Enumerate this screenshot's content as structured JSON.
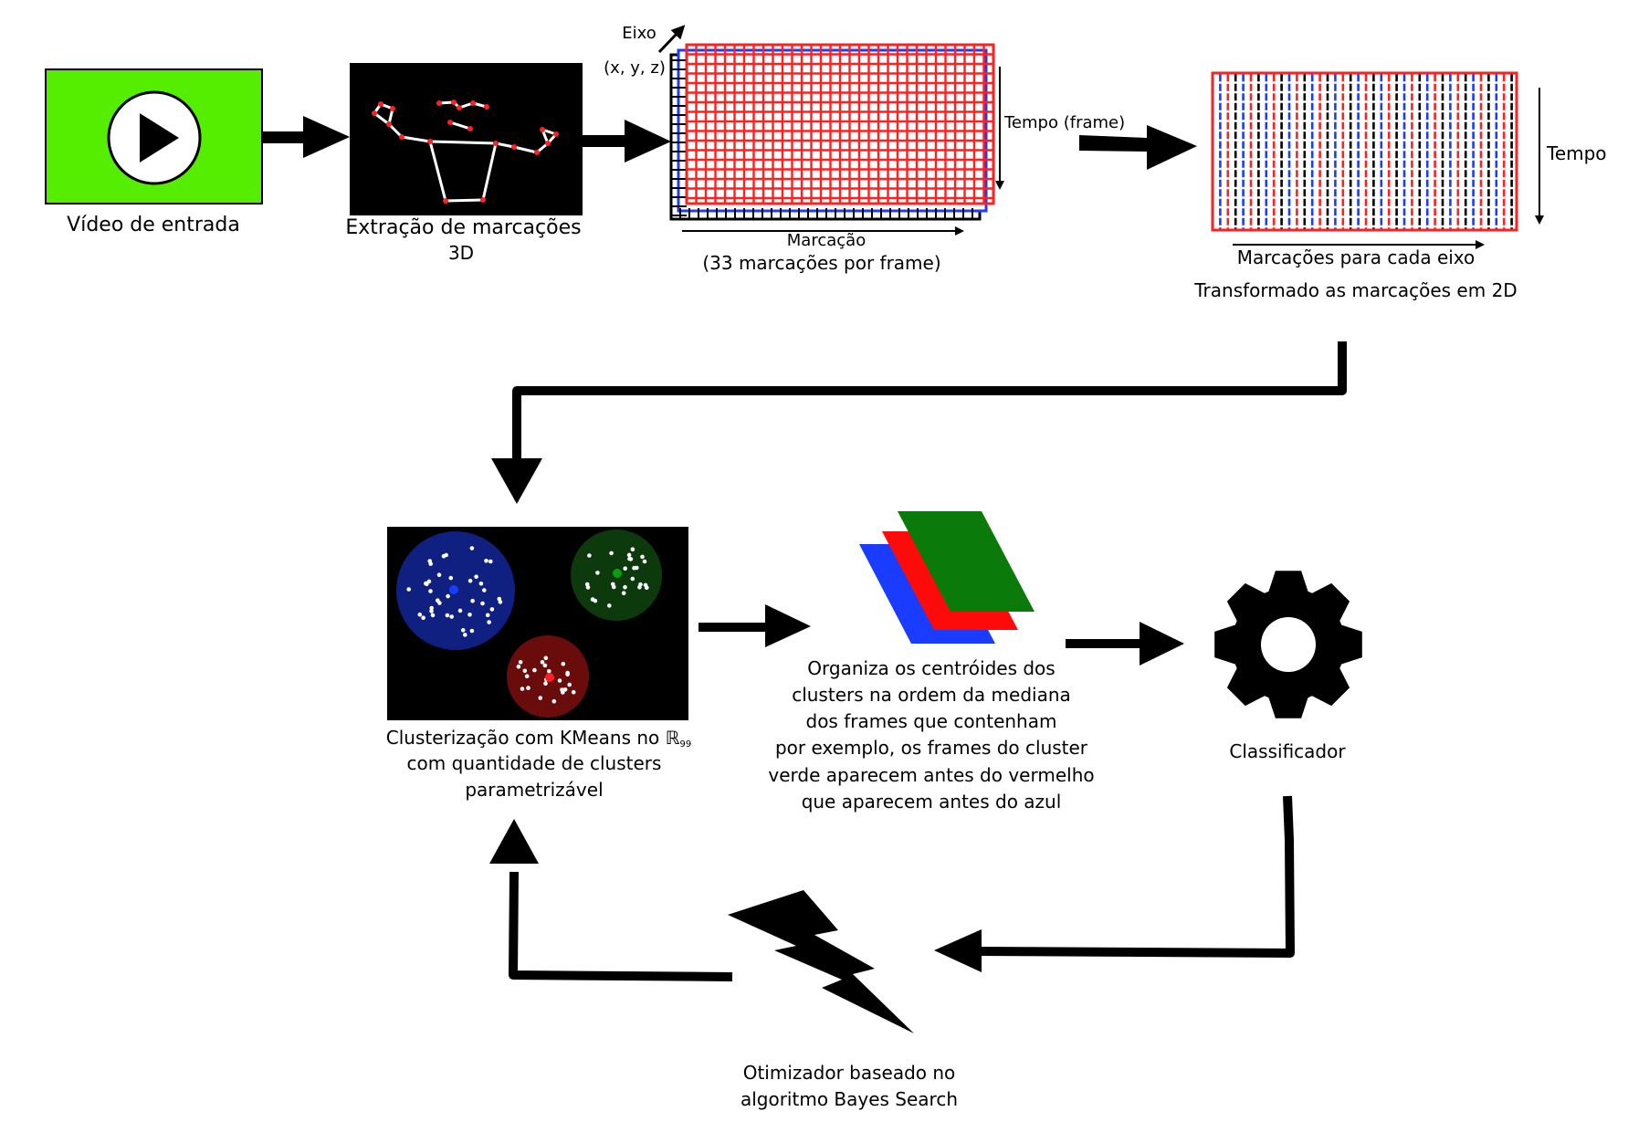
{
  "labels": {
    "video": "Vídeo de entrada",
    "extraction_line1": "Extração de marcações",
    "extraction_line2": "3D",
    "axis": "Eixo",
    "xyz": "(x, y, z)",
    "time_frame": "Tempo (frame)",
    "marking": "Marcação",
    "markings_per_frame": "(33 marcações por frame)",
    "time": "Tempo",
    "markings_per_axis": "Marcações para cada eixo",
    "transformed": "Transformado as marcações em 2D",
    "clustering_prefix": "Clusterização com KMeans no ℝ",
    "clustering_dim": "99",
    "clustering_line2": "com quantidade de clusters",
    "clustering_line3": "parametrizável",
    "organize_lines": [
      "Organiza os centróides dos",
      "clusters na ordem da mediana",
      "dos frames que contenham",
      "por exemplo, os frames do cluster",
      "verde aparecem antes do vermelho",
      "que aparecem antes do azul"
    ],
    "classifier": "Classificador",
    "optimizer_line1": "Otimizador baseado no",
    "optimizer_line2": "algoritmo Bayes Search"
  },
  "icons": {
    "video": "play-icon",
    "extraction": "skeleton-pose-icon",
    "classifier": "gear-icon",
    "optimizer": "lightning-icon"
  },
  "colors": {
    "video_bg": "#55ee00",
    "cluster_blue": "#102080",
    "cluster_green": "#0c3a0c",
    "cluster_red": "#6a0c0c",
    "layer_red": "#ff2020",
    "layer_blue": "#1a3cff",
    "layer_green": "#0a7a0a",
    "layer_black": "#000000"
  }
}
